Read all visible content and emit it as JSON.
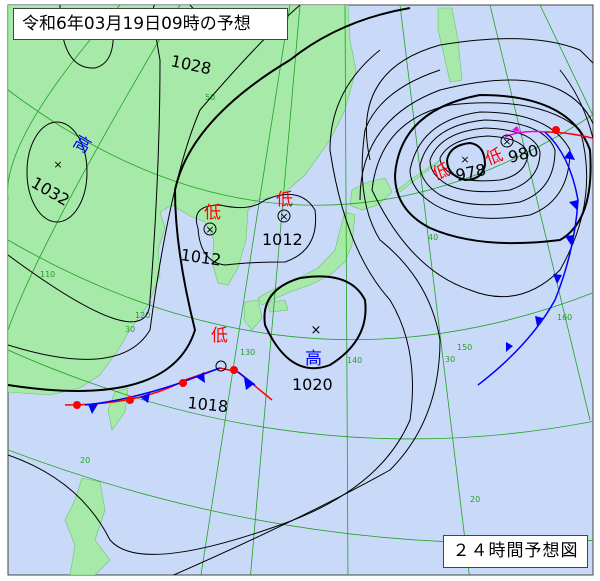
{
  "header": {
    "title": "令和6年03月19日09時の予想"
  },
  "footer": {
    "label": "２４時間予想図"
  },
  "colors": {
    "ocean": "#c9daf8",
    "land": "#a6e9a9",
    "grid": "#22a022",
    "isobar": "#000000",
    "cold_front": "#0000ff",
    "warm_front": "#ff0000",
    "occluded_front": "#ee00ee",
    "low_label": "#ff0000",
    "high_label": "#0000ff"
  },
  "systems": [
    {
      "type": "high",
      "symbol": "高",
      "pressure": "1032"
    },
    {
      "type": "high",
      "symbol": "",
      "pressure": "1028"
    },
    {
      "type": "low",
      "symbol": "低",
      "pressure": "1012"
    },
    {
      "type": "low",
      "symbol": "低",
      "pressure": "1012"
    },
    {
      "type": "low",
      "symbol": "低",
      "pressure": "1018"
    },
    {
      "type": "high",
      "symbol": "高",
      "pressure": "1020"
    },
    {
      "type": "low",
      "symbol": "低",
      "pressure": "978"
    },
    {
      "type": "low",
      "symbol": "低",
      "pressure": "980"
    }
  ],
  "grid_labels": {
    "lat": [
      "50",
      "40",
      "30",
      "30",
      "30",
      "20",
      "20"
    ],
    "lon": [
      "110",
      "120",
      "130",
      "140",
      "150",
      "160"
    ]
  }
}
